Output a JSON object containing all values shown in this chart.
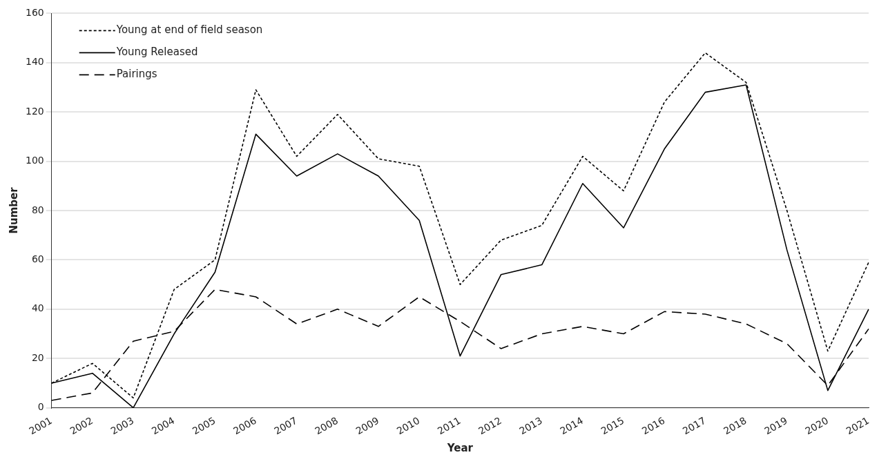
{
  "chart_data": {
    "type": "line",
    "xlabel": "Year",
    "ylabel": "Number",
    "categories": [
      "2001",
      "2002",
      "2003",
      "2004",
      "2005",
      "2006",
      "2007",
      "2008",
      "2009",
      "2010",
      "2011",
      "2012",
      "2013",
      "2014",
      "2015",
      "2016",
      "2017",
      "2018",
      "2019",
      "2020",
      "2021"
    ],
    "series": [
      {
        "name": "Young at end of field season",
        "color": "#000000",
        "line_style": "dotted",
        "values": [
          10,
          18,
          4,
          48,
          60,
          129,
          102,
          119,
          101,
          98,
          50,
          68,
          74,
          102,
          88,
          124,
          144,
          132,
          80,
          23,
          59
        ]
      },
      {
        "name": "Young Released",
        "color": "#000000",
        "line_style": "solid",
        "values": [
          10,
          14,
          0,
          30,
          55,
          111,
          94,
          103,
          94,
          76,
          21,
          54,
          58,
          91,
          73,
          105,
          128,
          131,
          64,
          7,
          40
        ]
      },
      {
        "name": "Pairings",
        "color": "#000000",
        "line_style": "dashed",
        "values": [
          3,
          6,
          27,
          31,
          48,
          45,
          34,
          40,
          33,
          45,
          35,
          24,
          30,
          33,
          30,
          39,
          38,
          34,
          26,
          9,
          32
        ]
      }
    ],
    "ylim": [
      0,
      160
    ],
    "yticks": [
      0,
      20,
      40,
      60,
      80,
      100,
      120,
      140,
      160
    ],
    "grid": "y",
    "legend": "top left",
    "marker": "none"
  }
}
